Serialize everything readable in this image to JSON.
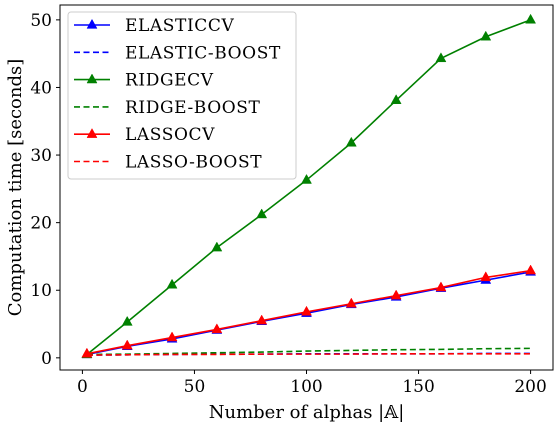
{
  "chart_data": {
    "type": "line",
    "xlabel": "Number of alphas |𝔸|",
    "ylabel": "Computation time [seconds]",
    "xlim": [
      -10,
      210
    ],
    "ylim": [
      -1.8,
      52.2
    ],
    "xticks": [
      0,
      50,
      100,
      150,
      200
    ],
    "yticks": [
      0,
      10,
      20,
      30,
      40,
      50
    ],
    "legend_position": "top-left",
    "x": [
      2,
      20,
      40,
      60,
      80,
      100,
      120,
      140,
      160,
      180,
      200
    ],
    "series": [
      {
        "name": "ELASTICCV",
        "color": "#0000ff",
        "style": "solid",
        "marker": "triangle",
        "values": [
          0.5,
          1.7,
          2.8,
          4.1,
          5.4,
          6.6,
          7.9,
          9.0,
          10.3,
          11.5,
          12.7
        ]
      },
      {
        "name": "ELASTIC-BOOST",
        "color": "#0000ff",
        "style": "dashed",
        "marker": "none",
        "values": [
          0.4,
          0.45,
          0.5,
          0.55,
          0.55,
          0.6,
          0.6,
          0.6,
          0.6,
          0.65,
          0.65
        ]
      },
      {
        "name": "RIDGECV",
        "color": "#008000",
        "style": "solid",
        "marker": "triangle",
        "values": [
          0.5,
          5.3,
          10.8,
          16.3,
          21.2,
          26.3,
          31.8,
          38.1,
          44.3,
          47.5,
          50.0
        ]
      },
      {
        "name": "RIDGE-BOOST",
        "color": "#008000",
        "style": "dashed",
        "marker": "none",
        "values": [
          0.5,
          0.55,
          0.65,
          0.75,
          0.85,
          1.0,
          1.1,
          1.2,
          1.25,
          1.35,
          1.4
        ]
      },
      {
        "name": "LASSOCV",
        "color": "#ff0000",
        "style": "solid",
        "marker": "triangle",
        "values": [
          0.6,
          1.8,
          3.0,
          4.2,
          5.5,
          6.8,
          8.0,
          9.2,
          10.4,
          11.9,
          12.9
        ]
      },
      {
        "name": "LASSO-BOOST",
        "color": "#ff0000",
        "style": "dashed",
        "marker": "none",
        "values": [
          0.4,
          0.45,
          0.5,
          0.5,
          0.55,
          0.55,
          0.55,
          0.6,
          0.6,
          0.6,
          0.6
        ]
      }
    ]
  }
}
